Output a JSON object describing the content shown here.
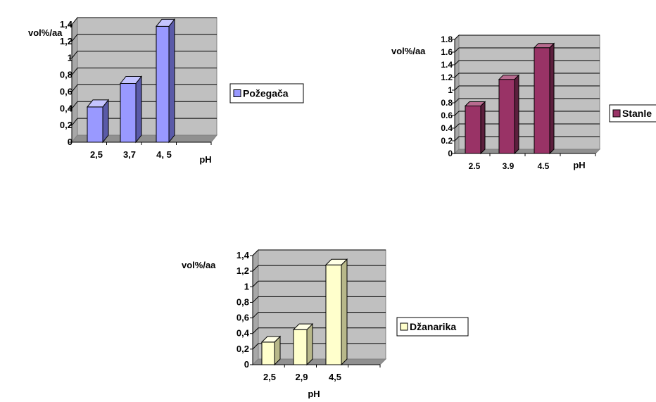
{
  "chart_data": [
    {
      "type": "bar",
      "ylabel": "vol%/aa",
      "xlabel": "pH",
      "categories": [
        "2,5",
        "3,7",
        "4, 5"
      ],
      "series": [
        {
          "name": "Požegača",
          "values": [
            0.42,
            0.7,
            1.38
          ]
        }
      ],
      "ylim": [
        0,
        1.4
      ],
      "yticks": [
        "0",
        "0,2",
        "0,4",
        "0,6",
        "0,8",
        "1",
        "1,2",
        "1,4"
      ],
      "colors": {
        "front": "#9999ff",
        "side": "#5a5aa8",
        "top": "#c4c4ff",
        "wall": "#c0c0c0"
      },
      "grid": true,
      "legend_position": "right"
    },
    {
      "type": "bar",
      "ylabel": "vol%/aa",
      "xlabel": "pH",
      "categories": [
        "2.5",
        "3.9",
        "4.5"
      ],
      "series": [
        {
          "name": "Stanle",
          "values": [
            0.75,
            1.17,
            1.67
          ]
        }
      ],
      "ylim": [
        0,
        1.8
      ],
      "yticks": [
        "0",
        "0.2",
        "0.4",
        "0.6",
        "0.8",
        "1",
        "1.2",
        "1.4",
        "1.6",
        "1.8"
      ],
      "colors": {
        "front": "#993366",
        "side": "#5c1f3d",
        "top": "#b86b8f",
        "wall": "#c0c0c0"
      },
      "grid": true,
      "legend_position": "right"
    },
    {
      "type": "bar",
      "ylabel": "vol%/aa",
      "xlabel": "pH",
      "categories": [
        "2,5",
        "2,9",
        "4,5"
      ],
      "series": [
        {
          "name": "Džanarika",
          "values": [
            0.29,
            0.45,
            1.28
          ]
        }
      ],
      "ylim": [
        0,
        1.4
      ],
      "yticks": [
        "0",
        "0,2",
        "0,4",
        "0,6",
        "0,8",
        "1",
        "1,2",
        "1,4"
      ],
      "colors": {
        "front": "#ffffcc",
        "side": "#b8b88a",
        "top": "#ffffe6",
        "wall": "#c0c0c0"
      },
      "grid": true,
      "legend_position": "right"
    }
  ]
}
